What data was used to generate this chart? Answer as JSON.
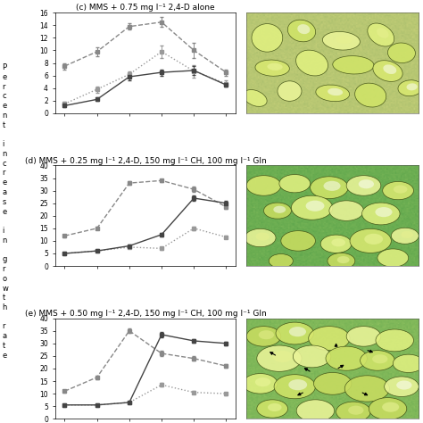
{
  "title_c": "(c) MMS + 0.75 mg l⁻¹ 2,4-D alone",
  "title_d": "(d) MMS + 0.25 mg l⁻¹ 2,4-D, 150 mg l⁻¹ CH, 100 mg l⁻¹ Gln",
  "title_e": "(e) MMS + 0.50 mg l⁻¹ 2,4-D, 150 mg l⁻¹ CH, 100 mg l⁻¹ Gln",
  "x_vals": [
    0,
    1,
    2,
    3,
    4,
    5
  ],
  "c_dashed": [
    7.5,
    9.8,
    13.8,
    14.5,
    10.0,
    6.5
  ],
  "c_dotted": [
    1.5,
    3.8,
    6.2,
    9.8,
    6.7,
    4.7
  ],
  "c_solid": [
    1.2,
    2.2,
    5.8,
    6.5,
    6.8,
    4.5
  ],
  "c_dashed_err": [
    0.5,
    0.7,
    0.5,
    0.8,
    1.2,
    0.5
  ],
  "c_dotted_err": [
    0.3,
    0.5,
    0.5,
    1.0,
    1.0,
    0.5
  ],
  "c_solid_err": [
    0.2,
    0.3,
    0.5,
    0.5,
    0.7,
    0.3
  ],
  "c_ylim": [
    0,
    16
  ],
  "c_yticks": [
    0,
    2,
    4,
    6,
    8,
    10,
    12,
    14,
    16
  ],
  "d_dashed": [
    12.0,
    15.0,
    33.0,
    34.0,
    30.5,
    23.5
  ],
  "d_solid": [
    5.0,
    6.0,
    8.0,
    12.5,
    27.0,
    25.0
  ],
  "d_dotted": [
    5.0,
    6.0,
    7.5,
    7.0,
    15.0,
    11.5
  ],
  "d_dashed_err": [
    0.5,
    0.5,
    0.8,
    0.5,
    1.0,
    0.8
  ],
  "d_solid_err": [
    0.3,
    0.4,
    0.5,
    0.8,
    1.0,
    1.0
  ],
  "d_dotted_err": [
    0.3,
    0.3,
    0.5,
    0.5,
    0.8,
    0.5
  ],
  "d_ylim": [
    0,
    40
  ],
  "d_yticks": [
    0,
    5,
    10,
    15,
    20,
    25,
    30,
    35,
    40
  ],
  "e_dashed": [
    11.0,
    16.5,
    35.0,
    26.0,
    24.0,
    21.0
  ],
  "e_solid": [
    5.5,
    5.5,
    6.5,
    33.5,
    31.0,
    30.0
  ],
  "e_dotted": [
    5.5,
    5.5,
    6.5,
    13.5,
    10.5,
    10.0
  ],
  "e_dashed_err": [
    0.5,
    0.8,
    0.8,
    1.0,
    1.0,
    0.8
  ],
  "e_solid_err": [
    0.3,
    0.3,
    0.5,
    1.0,
    0.8,
    0.8
  ],
  "e_dotted_err": [
    0.3,
    0.3,
    0.5,
    0.8,
    0.5,
    0.5
  ],
  "e_ylim": [
    0,
    40
  ],
  "e_yticks": [
    0,
    5,
    10,
    15,
    20,
    25,
    30,
    35,
    40
  ],
  "line_color_dashed": "#888888",
  "line_color_solid": "#444444",
  "line_color_dotted": "#999999",
  "markersize": 3.0,
  "linewidth": 1.0,
  "title_fontsize": 6.5,
  "tick_fontsize": 5.5,
  "img_bg_c": [
    0.72,
    0.78,
    0.45
  ],
  "img_bg_d": [
    0.42,
    0.68,
    0.32
  ],
  "img_bg_e": [
    0.5,
    0.72,
    0.35
  ],
  "ylabel_text": "P\ne\nr\nc\ne\nn\nt\n \ni\nn\nc\nr\ne\na\ns\ne\n \ni\nn\n \ng\nr\no\nw\nt\nh\n \nr\na\nt\ne"
}
